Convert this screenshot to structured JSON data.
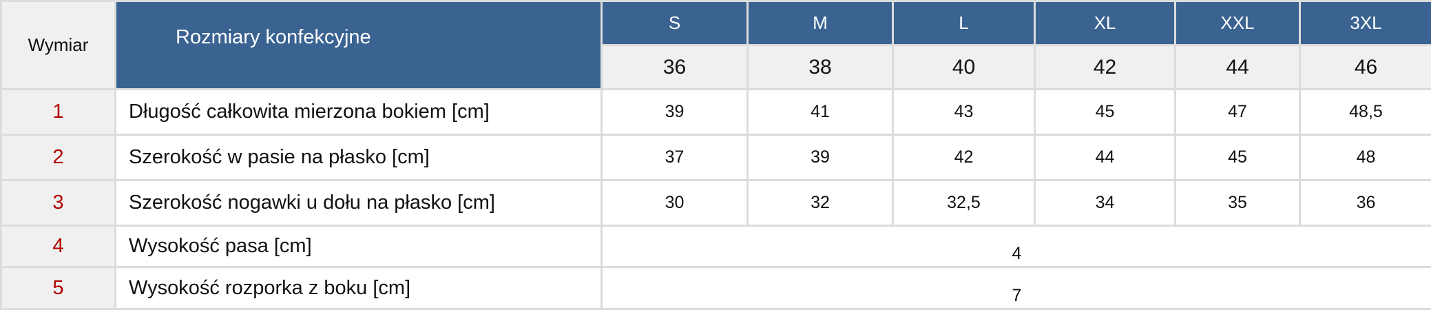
{
  "header": {
    "dimension_label": "Wymiar",
    "sizes_label": "Rozmiary konfekcyjne",
    "sizes": [
      "S",
      "M",
      "L",
      "XL",
      "XXL",
      "3XL"
    ],
    "size_numbers": [
      "36",
      "38",
      "40",
      "42",
      "44",
      "46"
    ]
  },
  "rows": [
    {
      "num": "1",
      "label": "Długość całkowita mierzona bokiem [cm]",
      "values": [
        "39",
        "41",
        "43",
        "45",
        "47",
        "48,5"
      ]
    },
    {
      "num": "2",
      "label": "Szerokość w pasie na płasko [cm]",
      "values": [
        "37",
        "39",
        "42",
        "44",
        "45",
        "48"
      ]
    },
    {
      "num": "3",
      "label": "Szerokość nogawki u dołu na płasko [cm]",
      "values": [
        "30",
        "32",
        "32,5",
        "34",
        "35",
        "36"
      ]
    },
    {
      "num": "4",
      "label": "Wysokość pasa [cm]",
      "value": "4"
    },
    {
      "num": "5",
      "label": "Wysokość rozporka z boku [cm]",
      "value": "7"
    }
  ],
  "colors": {
    "header_blue": "#3a6391",
    "number_red": "#b20000",
    "cell_grey": "#f0f0f0"
  }
}
